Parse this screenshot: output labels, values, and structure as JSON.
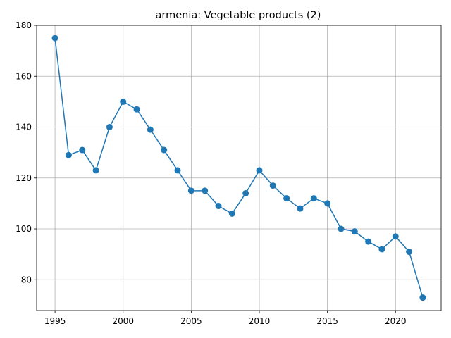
{
  "chart_data": {
    "type": "line",
    "title": "armenia: Vegetable products (2)",
    "xlabel": "",
    "ylabel": "",
    "xlim": [
      1993.65,
      2023.35
    ],
    "ylim": [
      67.9,
      180.0
    ],
    "x_ticks": [
      1995,
      2000,
      2005,
      2010,
      2015,
      2020
    ],
    "y_ticks": [
      80,
      100,
      120,
      140,
      160,
      180
    ],
    "grid": true,
    "legend": "none",
    "color": "#1f77b4",
    "x": [
      1995,
      1996,
      1997,
      1998,
      1999,
      2000,
      2001,
      2002,
      2003,
      2004,
      2005,
      2006,
      2007,
      2008,
      2009,
      2010,
      2011,
      2012,
      2013,
      2014,
      2015,
      2016,
      2017,
      2018,
      2019,
      2020,
      2021,
      2022
    ],
    "values": [
      175,
      129,
      131,
      123,
      140,
      150,
      147,
      139,
      131,
      123,
      115,
      115,
      109,
      106,
      114,
      123,
      117,
      112,
      108,
      112,
      110,
      100,
      99,
      95,
      92,
      97,
      91,
      73
    ]
  }
}
